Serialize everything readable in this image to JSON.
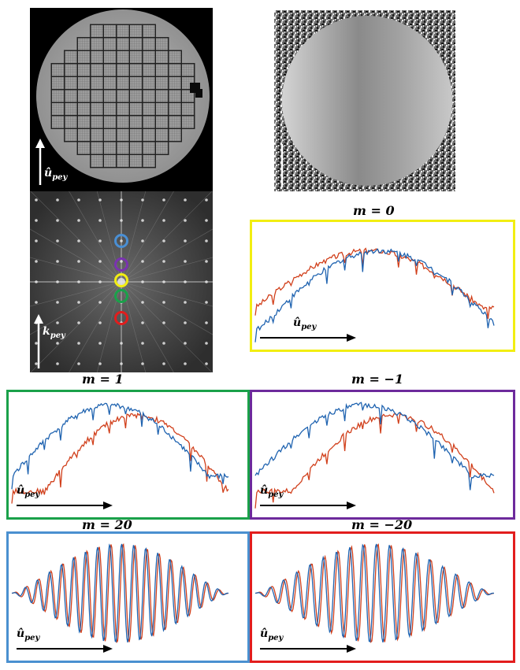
{
  "labels": {
    "u_hat": "û",
    "u_sub": "pey",
    "k": "k",
    "k_sub": "pey"
  },
  "plots": [
    {
      "id": "m0",
      "title": "m = 0",
      "border": "#f2ee12",
      "kind": "smooth"
    },
    {
      "id": "m1",
      "title": "m = 1",
      "border": "#1aa14a",
      "kind": "mirrorA"
    },
    {
      "id": "mm1",
      "title": "m = −1",
      "border": "#6d2a9c",
      "kind": "mirrorB"
    },
    {
      "id": "m20",
      "title": "m = 20",
      "border": "#4a90d0",
      "kind": "osc"
    },
    {
      "id": "mm20",
      "title": "m = −20",
      "border": "#e21d1d",
      "kind": "osc2"
    }
  ],
  "series_colors": {
    "red": "#d1401c",
    "blue": "#1f63b0"
  },
  "fft_markers": [
    {
      "color": "#4a8fd4",
      "label": "blue"
    },
    {
      "color": "#7a32b0",
      "label": "purple"
    },
    {
      "color": "#f2ee12",
      "label": "yellow"
    },
    {
      "color": "#1aa14a",
      "label": "green"
    },
    {
      "color": "#e21d1d",
      "label": "red"
    }
  ]
}
